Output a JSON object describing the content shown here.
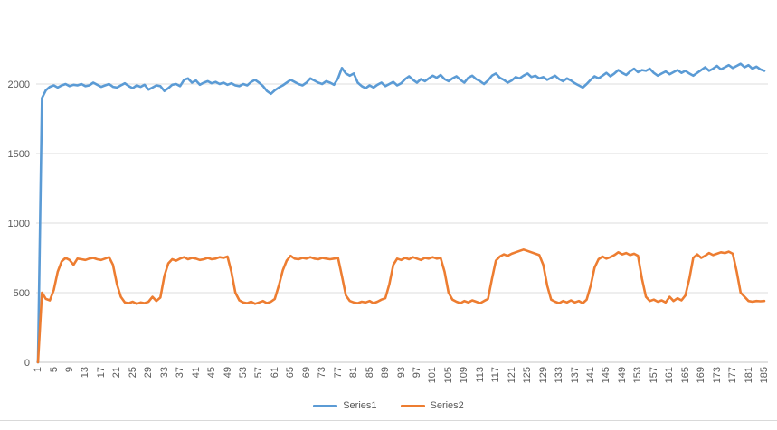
{
  "chart": {
    "background_color": "#ffffff",
    "grid_color": "#dcdcdc",
    "axis_color": "#c6c6c6",
    "tick_label_color": "#595959",
    "legend": {
      "position": "bottom-center",
      "items": [
        {
          "label": "Series1",
          "color": "#5b9bd5"
        },
        {
          "label": "Series2",
          "color": "#ed7d31"
        }
      ]
    }
  },
  "chart_data": {
    "type": "line",
    "title": "",
    "xlabel": "",
    "ylabel": "",
    "ylim": [
      0,
      2000
    ],
    "y_ticks": [
      0,
      500,
      1000,
      1500,
      2000
    ],
    "grid": "horizontal",
    "legend_position": "bottom",
    "x_range": [
      1,
      185
    ],
    "x_tick_interval": 4,
    "x_tick_labels": [
      "1",
      "5",
      "9",
      "13",
      "17",
      "21",
      "25",
      "29",
      "33",
      "37",
      "41",
      "45",
      "49",
      "53",
      "57",
      "61",
      "65",
      "69",
      "73",
      "77",
      "81",
      "85",
      "89",
      "93",
      "97",
      "101",
      "105",
      "109",
      "113",
      "117",
      "121",
      "125",
      "129",
      "133",
      "137",
      "141",
      "145",
      "149",
      "153",
      "157",
      "161",
      "165",
      "169",
      "173",
      "177",
      "181",
      "185"
    ],
    "series": [
      {
        "name": "Series1",
        "color": "#5b9bd5",
        "values": [
          0,
          1900,
          1955,
          1980,
          1990,
          1975,
          1990,
          2000,
          1985,
          1995,
          1990,
          2000,
          1985,
          1990,
          2010,
          1995,
          1980,
          1990,
          2000,
          1980,
          1975,
          1990,
          2005,
          1985,
          1970,
          1990,
          1980,
          1995,
          1960,
          1975,
          1990,
          1985,
          1950,
          1970,
          1995,
          2000,
          1985,
          2030,
          2040,
          2010,
          2025,
          1995,
          2010,
          2020,
          2005,
          2015,
          2000,
          2010,
          1995,
          2005,
          1990,
          1985,
          2000,
          1990,
          2015,
          2030,
          2010,
          1985,
          1950,
          1930,
          1955,
          1975,
          1990,
          2010,
          2030,
          2015,
          2000,
          1990,
          2010,
          2040,
          2025,
          2010,
          2000,
          2020,
          2010,
          1995,
          2040,
          2115,
          2075,
          2060,
          2075,
          2010,
          1985,
          1970,
          1990,
          1975,
          1995,
          2010,
          1985,
          2000,
          2015,
          1990,
          2005,
          2035,
          2055,
          2030,
          2010,
          2035,
          2020,
          2040,
          2060,
          2045,
          2065,
          2035,
          2020,
          2040,
          2055,
          2030,
          2010,
          2045,
          2060,
          2035,
          2020,
          2000,
          2025,
          2060,
          2075,
          2045,
          2030,
          2010,
          2025,
          2050,
          2040,
          2060,
          2075,
          2050,
          2060,
          2040,
          2050,
          2030,
          2045,
          2060,
          2035,
          2020,
          2040,
          2025,
          2005,
          1990,
          1975,
          2000,
          2030,
          2055,
          2040,
          2060,
          2080,
          2055,
          2075,
          2100,
          2080,
          2065,
          2090,
          2110,
          2085,
          2100,
          2095,
          2110,
          2080,
          2060,
          2075,
          2090,
          2070,
          2085,
          2100,
          2080,
          2095,
          2075,
          2060,
          2080,
          2100,
          2120,
          2095,
          2110,
          2130,
          2105,
          2120,
          2135,
          2115,
          2130,
          2145,
          2120,
          2135,
          2110,
          2125,
          2105,
          2095
        ]
      },
      {
        "name": "Series2",
        "color": "#ed7d31",
        "values": [
          0,
          500,
          455,
          445,
          520,
          650,
          725,
          750,
          735,
          700,
          745,
          740,
          735,
          745,
          750,
          740,
          735,
          745,
          755,
          700,
          560,
          470,
          430,
          425,
          435,
          420,
          430,
          425,
          435,
          470,
          440,
          465,
          620,
          710,
          740,
          730,
          745,
          755,
          740,
          750,
          745,
          735,
          740,
          750,
          740,
          745,
          755,
          750,
          760,
          650,
          500,
          445,
          430,
          425,
          435,
          420,
          430,
          440,
          425,
          435,
          455,
          550,
          660,
          730,
          765,
          745,
          740,
          750,
          745,
          755,
          745,
          740,
          750,
          745,
          740,
          745,
          750,
          620,
          480,
          440,
          430,
          425,
          435,
          430,
          440,
          425,
          435,
          450,
          460,
          560,
          700,
          745,
          735,
          750,
          740,
          755,
          745,
          735,
          750,
          745,
          755,
          745,
          750,
          650,
          500,
          450,
          435,
          425,
          440,
          430,
          445,
          435,
          425,
          440,
          455,
          600,
          730,
          760,
          775,
          765,
          780,
          790,
          800,
          810,
          800,
          790,
          780,
          770,
          700,
          550,
          450,
          435,
          425,
          440,
          430,
          445,
          430,
          440,
          425,
          450,
          550,
          680,
          740,
          760,
          745,
          755,
          770,
          790,
          775,
          785,
          770,
          780,
          765,
          600,
          470,
          440,
          450,
          435,
          445,
          430,
          470,
          440,
          460,
          445,
          480,
          600,
          750,
          775,
          750,
          765,
          785,
          770,
          780,
          790,
          785,
          795,
          780,
          650,
          500,
          470,
          440,
          435,
          440,
          438,
          440
        ]
      }
    ]
  }
}
